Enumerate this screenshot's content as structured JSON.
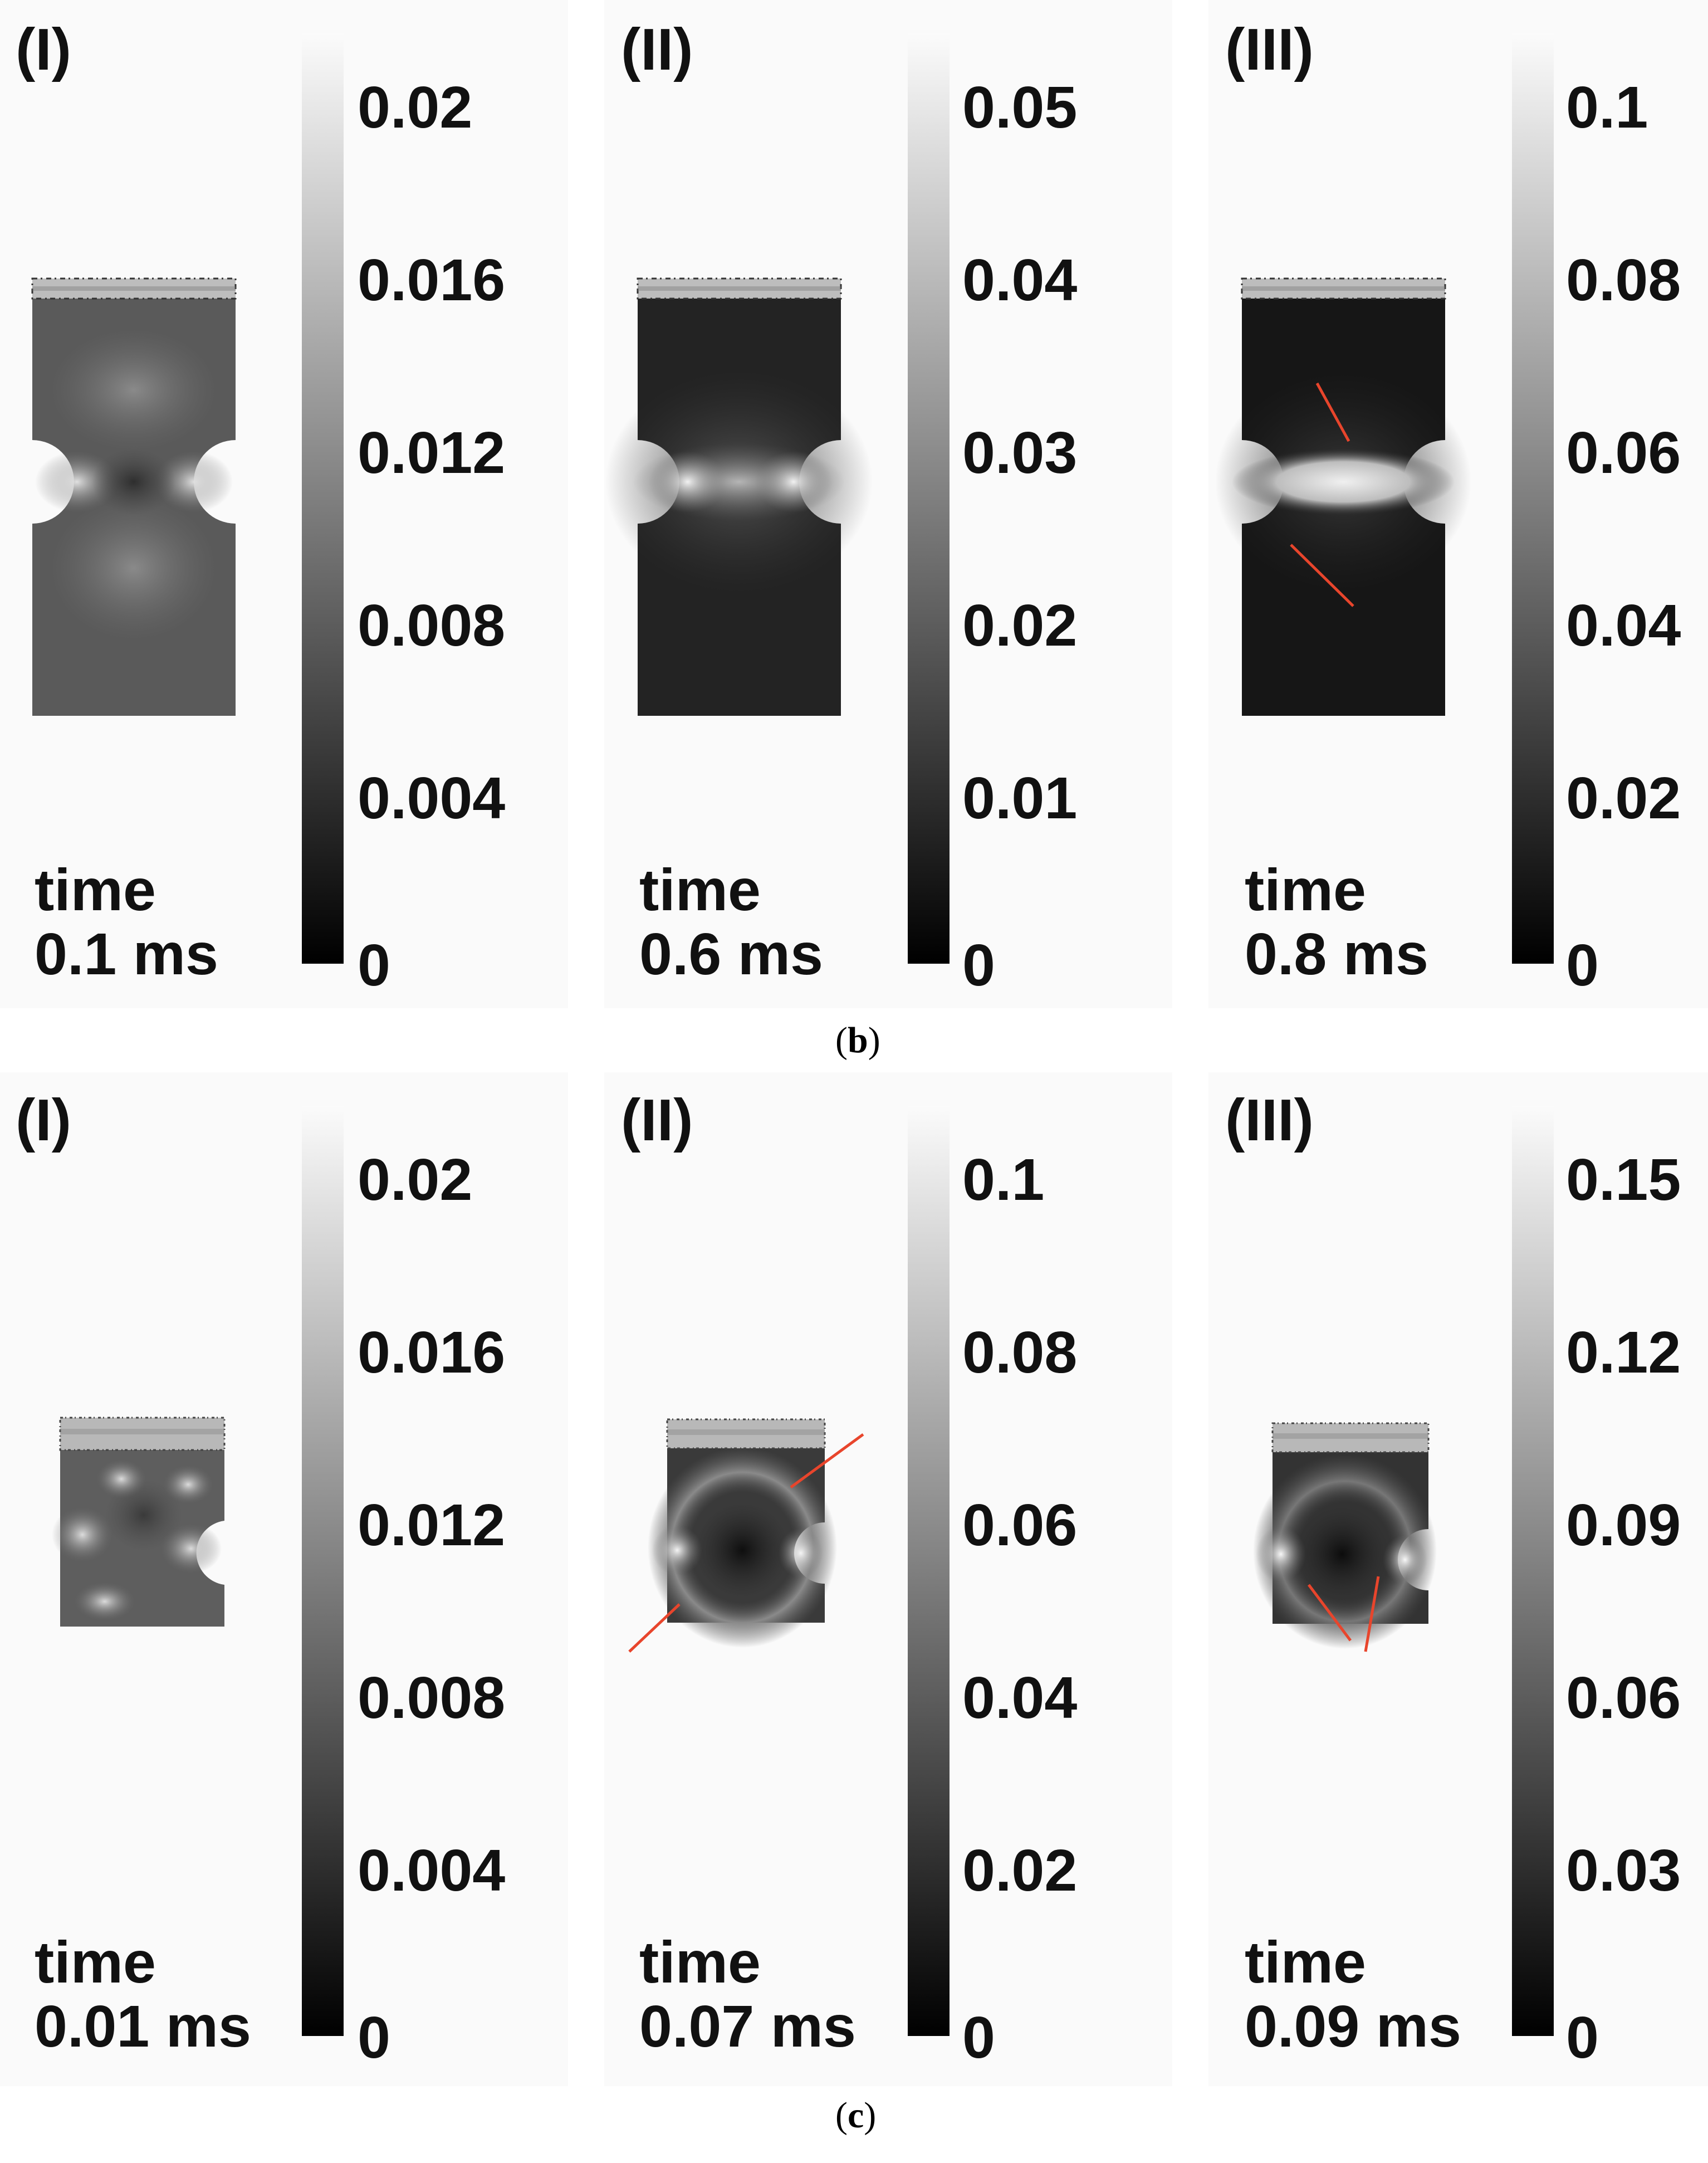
{
  "figure": {
    "rows": [
      {
        "caption": "b",
        "panels": [
          {
            "label": "(I)",
            "time_word": "time",
            "time_value": "0.1 ms",
            "colorbar_ticks": [
              "0.02",
              "0.016",
              "0.012",
              "0.008",
              "0.004",
              "0"
            ]
          },
          {
            "label": "(II)",
            "time_word": "time",
            "time_value": "0.6 ms",
            "colorbar_ticks": [
              "0.05",
              "0.04",
              "0.03",
              "0.02",
              "0.01",
              "0"
            ]
          },
          {
            "label": "(III)",
            "time_word": "time",
            "time_value": "0.8 ms",
            "colorbar_ticks": [
              "0.1",
              "0.08",
              "0.06",
              "0.04",
              "0.02",
              "0"
            ]
          }
        ]
      },
      {
        "caption": "c",
        "panels": [
          {
            "label": "(I)",
            "time_word": "time",
            "time_value": "0.01 ms",
            "colorbar_ticks": [
              "0.02",
              "0.016",
              "0.012",
              "0.008",
              "0.004",
              "0"
            ]
          },
          {
            "label": "(II)",
            "time_word": "time",
            "time_value": "0.07 ms",
            "colorbar_ticks": [
              "0.1",
              "0.08",
              "0.06",
              "0.04",
              "0.02",
              "0"
            ]
          },
          {
            "label": "(III)",
            "time_word": "time",
            "time_value": "0.09 ms",
            "colorbar_ticks": [
              "0.15",
              "0.12",
              "0.09",
              "0.06",
              "0.03",
              "0"
            ]
          }
        ]
      }
    ],
    "colors": {
      "arrow": "#e8452c",
      "colorbar_top": "#fbfbfb",
      "colorbar_bottom": "#000000"
    }
  }
}
